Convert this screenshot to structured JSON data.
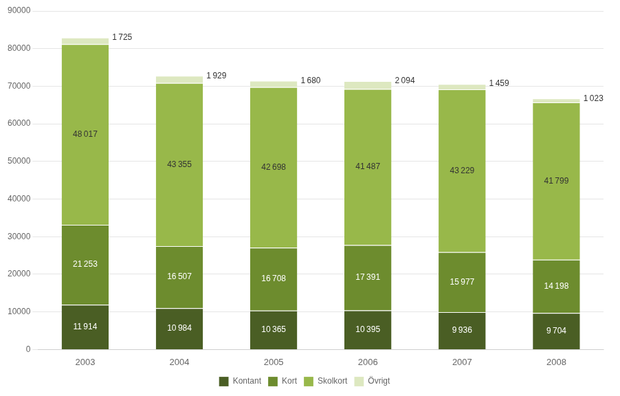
{
  "chart_data": {
    "type": "bar",
    "stacked": true,
    "categories": [
      "2003",
      "2004",
      "2005",
      "2006",
      "2007",
      "2008"
    ],
    "series": [
      {
        "name": "Kontant",
        "color": "#4a5e24",
        "values": [
          11914,
          10984,
          10365,
          10395,
          9936,
          9704
        ],
        "value_labels": [
          "11 914",
          "10 984",
          "10 365",
          "10 395",
          "9 936",
          "9 704"
        ]
      },
      {
        "name": "Kort",
        "color": "#6d8c2e",
        "values": [
          21253,
          16507,
          16708,
          17391,
          15977,
          14198
        ],
        "value_labels": [
          "21 253",
          "16 507",
          "16 708",
          "17 391",
          "15 977",
          "14 198"
        ]
      },
      {
        "name": "Skolkort",
        "color": "#98b84a",
        "values": [
          48017,
          43355,
          42698,
          41487,
          43229,
          41799
        ],
        "value_labels": [
          "48 017",
          "43 355",
          "42 698",
          "41 487",
          "43 229",
          "41 799"
        ]
      },
      {
        "name": "Övrigt",
        "color": "#dde8c0",
        "values": [
          1725,
          1929,
          1680,
          2094,
          1459,
          1023
        ],
        "value_labels": [
          "1 725",
          "1 929",
          "1 680",
          "2 094",
          "1 459",
          "1 023"
        ]
      }
    ],
    "ylim": [
      0,
      90000
    ],
    "yticks": [
      0,
      10000,
      20000,
      30000,
      40000,
      50000,
      60000,
      70000,
      80000,
      90000
    ],
    "grid": true,
    "legend": "bottom",
    "data_labels": true
  }
}
